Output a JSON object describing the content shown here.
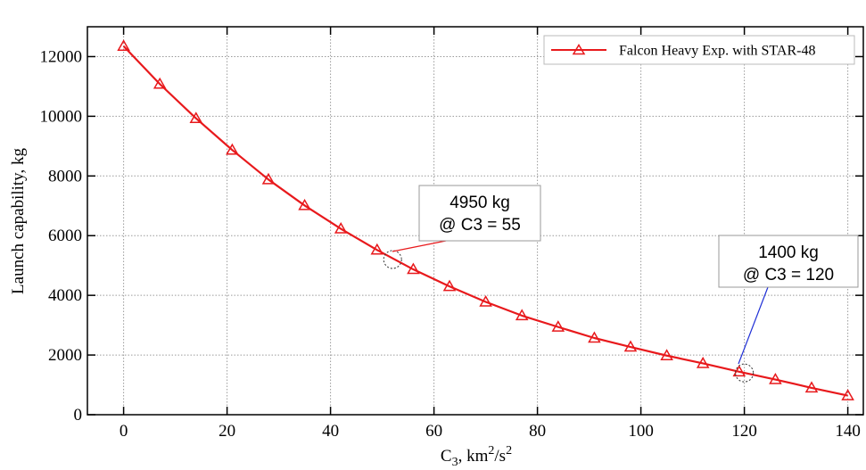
{
  "chart_data": {
    "type": "line",
    "xlabel_base": "C",
    "xlabel_sub": "3",
    "xlabel_rest": ", km",
    "xlabel_sup1": "2",
    "xlabel_mid": "/s",
    "xlabel_sup2": "2",
    "ylabel": "Launch capability, kg",
    "xlim": [
      -7,
      143
    ],
    "ylim": [
      0,
      13000
    ],
    "xticks": [
      0,
      20,
      40,
      60,
      80,
      100,
      120,
      140
    ],
    "yticks": [
      0,
      2000,
      4000,
      6000,
      8000,
      10000,
      12000
    ],
    "grid": true,
    "legend_position": "top-right",
    "series": [
      {
        "name": "Falcon Heavy Exp. with STAR-48",
        "color": "#e8191c",
        "marker": "open-triangle",
        "x": [
          0,
          7,
          14,
          21,
          28,
          35,
          42,
          49,
          56,
          63,
          70,
          77,
          84,
          91,
          98,
          105,
          112,
          119,
          126,
          133,
          140
        ],
        "y": [
          12350,
          11080,
          9930,
          8870,
          7880,
          7010,
          6230,
          5520,
          4870,
          4300,
          3780,
          3320,
          2940,
          2570,
          2270,
          1980,
          1720,
          1440,
          1180,
          900,
          640
        ]
      }
    ],
    "annotations": [
      {
        "line1": "4950 kg",
        "line2": "@ C3 = 55",
        "x": 52,
        "y": 5200,
        "leader_color": "#e8191c"
      },
      {
        "line1": "1400 kg",
        "line2": "@ C3 = 120",
        "x": 120,
        "y": 1400,
        "leader_color": "#1f2fd6"
      }
    ]
  }
}
